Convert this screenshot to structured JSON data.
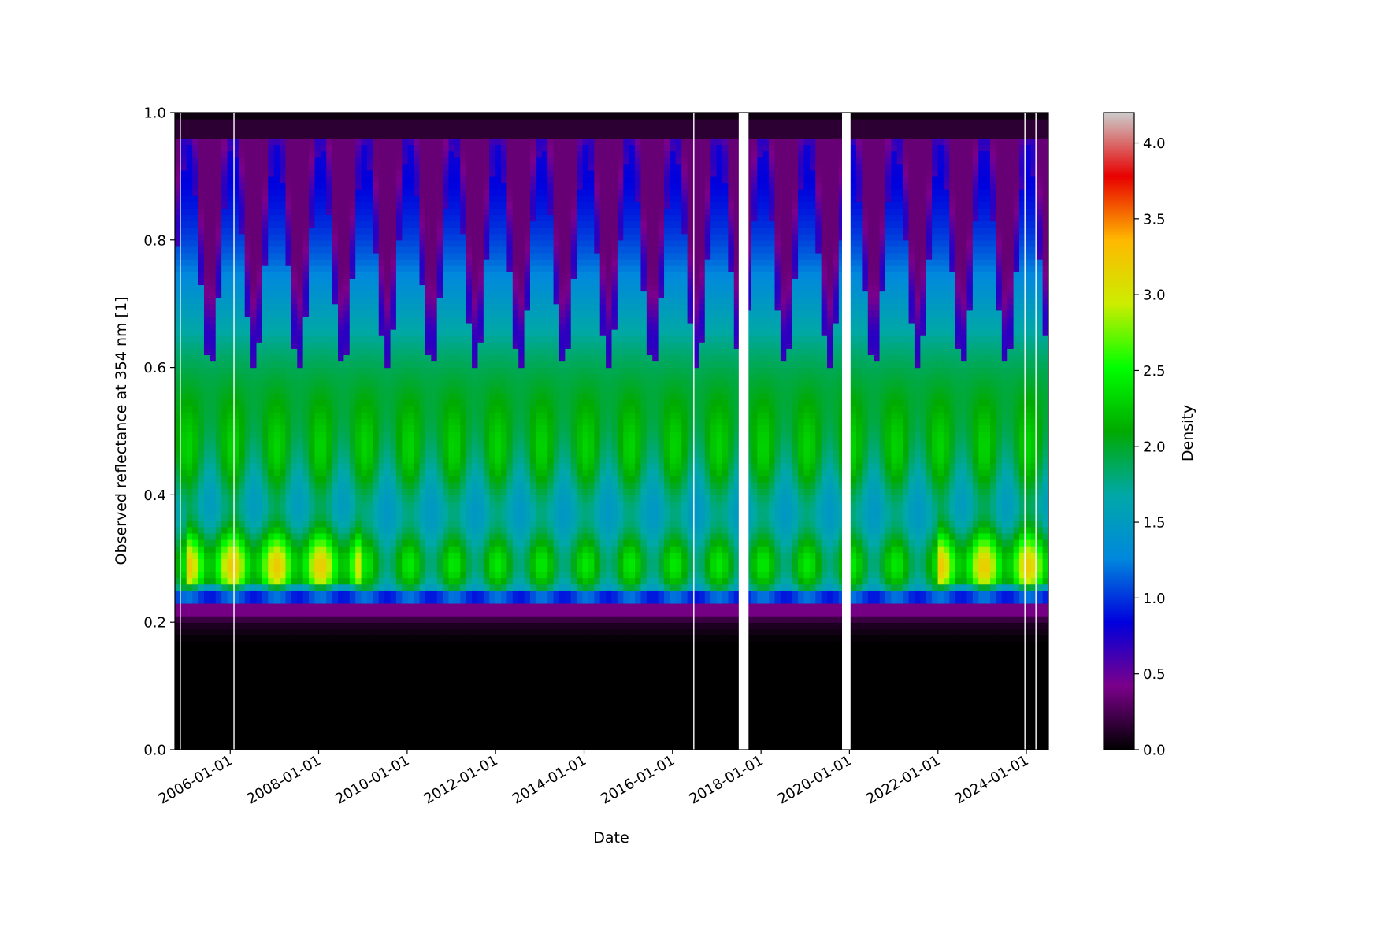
{
  "chart_data": {
    "type": "heatmap",
    "title": "",
    "xlabel": "Date",
    "ylabel": "Observed reflectance at 354 nm [1]",
    "x_range": [
      "2004-10-01",
      "2024-07-01"
    ],
    "ylim": [
      0.0,
      1.0
    ],
    "x_ticks": [
      "2006-01-01",
      "2008-01-01",
      "2010-01-01",
      "2012-01-01",
      "2014-01-01",
      "2016-01-01",
      "2018-01-01",
      "2020-01-01",
      "2022-01-01",
      "2024-01-01"
    ],
    "y_ticks": [
      "0.0",
      "0.2",
      "0.4",
      "0.6",
      "0.8",
      "1.0"
    ],
    "grid": false,
    "colorbar": {
      "label": "Density",
      "range": [
        0.0,
        4.2
      ],
      "ticks": [
        "0.0",
        "0.5",
        "1.0",
        "1.5",
        "2.0",
        "2.5",
        "3.0",
        "3.5",
        "4.0"
      ],
      "colormap": "nipy_spectral",
      "stops": [
        "#000000",
        "#7b008b",
        "#0000dd",
        "#0088dd",
        "#00a8a8",
        "#00aa00",
        "#00ff00",
        "#cced00",
        "#ffb800",
        "#e80000",
        "#cccccc"
      ]
    },
    "features": {
      "dense_band_reflectance": [
        0.25,
        0.34
      ],
      "peak_density_years": [
        "2005",
        "2006",
        "2007",
        "2008",
        "2022",
        "2023",
        "2024"
      ],
      "seasonal_upper_peak_reflectance": 0.95,
      "min_reflectance_edge": 0.22
    },
    "data_gaps": [
      {
        "start": "2017-07-01",
        "end": "2017-09-20"
      },
      {
        "start": "2019-11-01",
        "end": "2020-01-10"
      }
    ],
    "thin_gaps": [
      "2004-11-15",
      "2006-02-01",
      "2016-06-25",
      "2023-12-20",
      "2024-03-20"
    ]
  }
}
